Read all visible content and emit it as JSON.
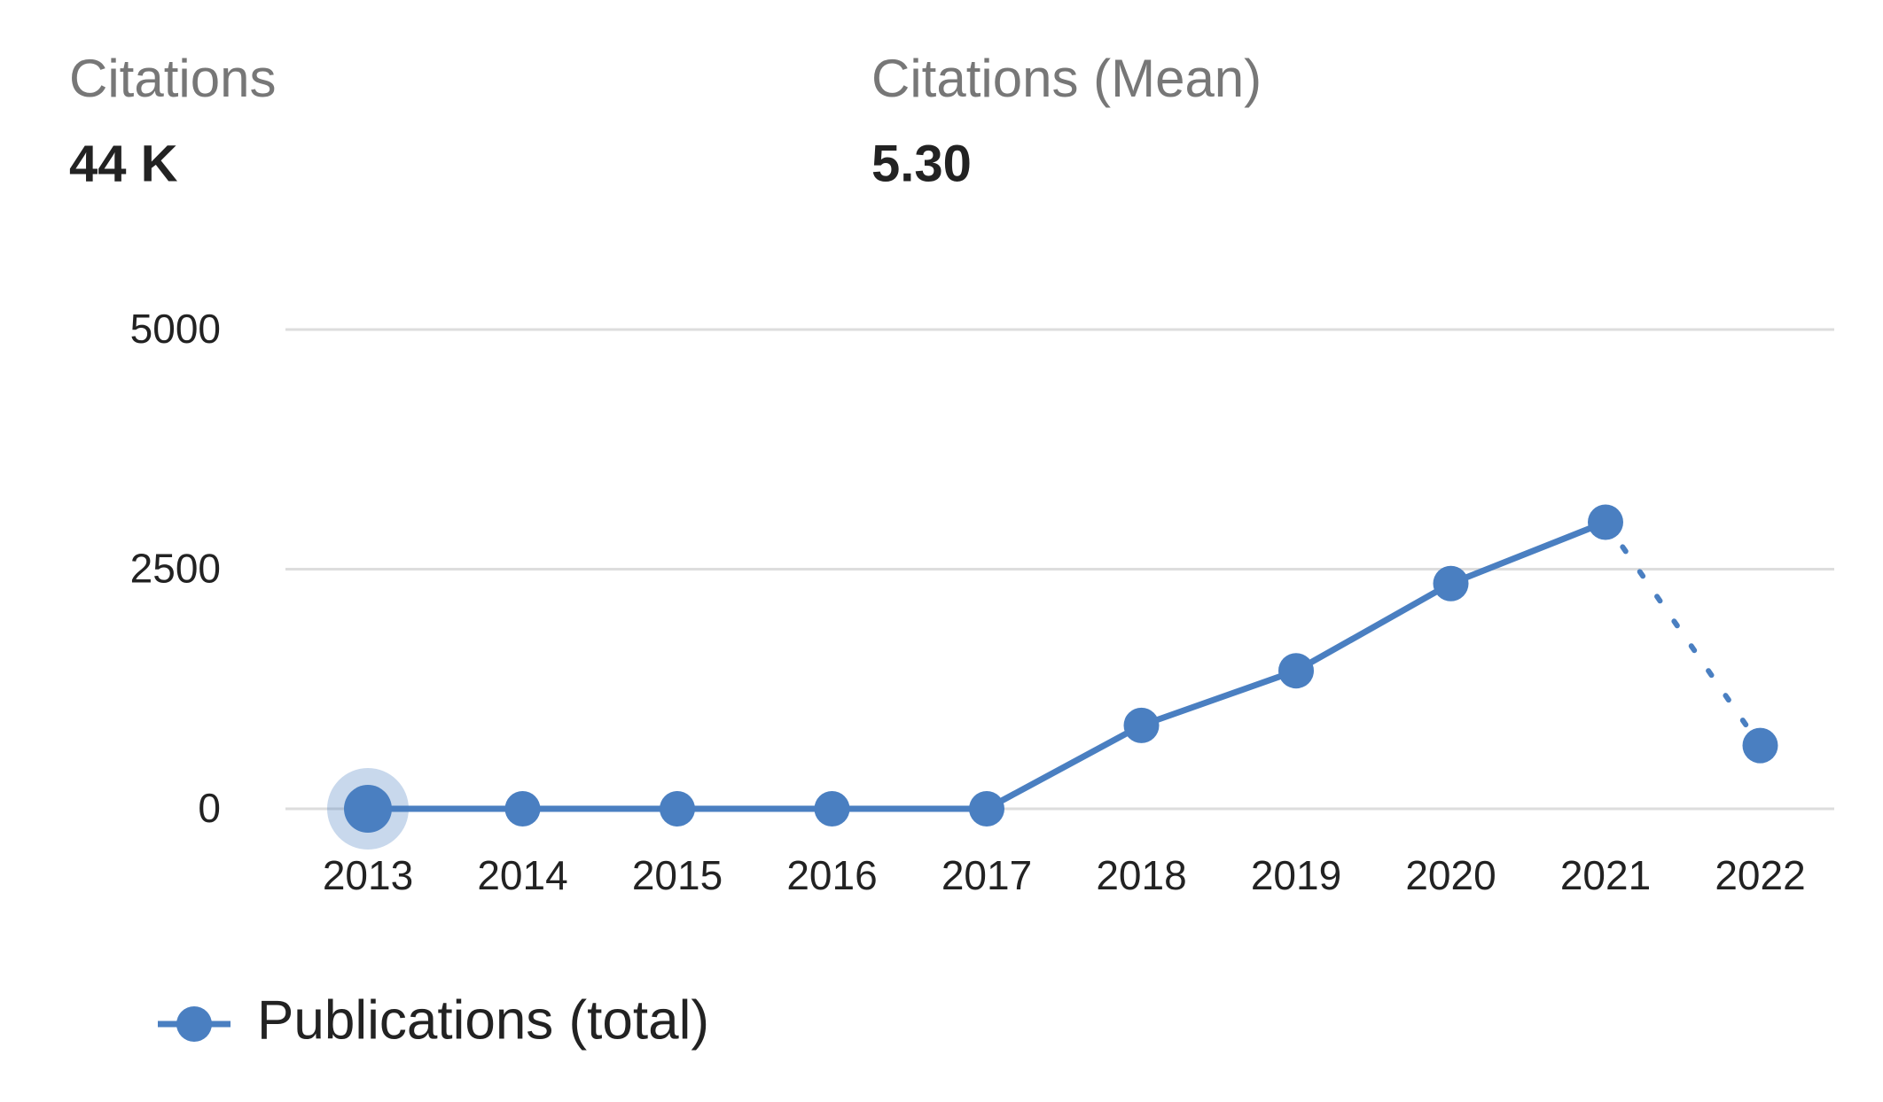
{
  "stats": [
    {
      "label": "Citations",
      "value": "44 K"
    },
    {
      "label": "Citations (Mean)",
      "value": "5.30"
    }
  ],
  "chart_data": {
    "type": "line",
    "categories": [
      "2013",
      "2014",
      "2015",
      "2016",
      "2017",
      "2018",
      "2019",
      "2020",
      "2021",
      "2022"
    ],
    "series": [
      {
        "name": "Publications (total)",
        "color": "#4a7fc1",
        "values": [
          0,
          0,
          0,
          0,
          0,
          870,
          1440,
          2350,
          2990,
          660
        ]
      }
    ],
    "ylim": [
      0,
      5000
    ],
    "yticks": [
      0,
      2500,
      5000
    ],
    "grid": true,
    "dotted_last_segment": true,
    "highlight_index": 0,
    "legend": "bottom-left"
  }
}
